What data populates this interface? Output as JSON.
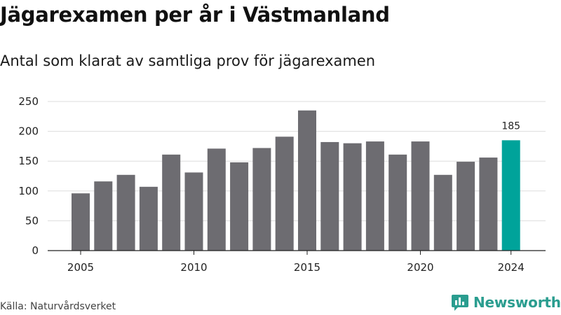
{
  "title": "Jägarexamen per år i Västmanland",
  "subtitle": "Antal som klarat av samtliga prov för jägarexamen",
  "source": "Källa: Naturvårdsverket",
  "brand": {
    "name": "Newsworthy",
    "logo_icon": "bar-chart-icon"
  },
  "colors": {
    "bar": "#6d6c71",
    "highlight": "#00a39a",
    "grid": "#dddddd",
    "brand": "#2a9d8f"
  },
  "chart_data": {
    "type": "bar",
    "categories": [
      "2005",
      "2006",
      "2007",
      "2008",
      "2009",
      "2010",
      "2011",
      "2012",
      "2013",
      "2014",
      "2015",
      "2016",
      "2017",
      "2018",
      "2019",
      "2020",
      "2021",
      "2022",
      "2023",
      "2024"
    ],
    "values": [
      96,
      116,
      127,
      107,
      161,
      131,
      171,
      148,
      172,
      191,
      235,
      182,
      180,
      183,
      161,
      183,
      127,
      149,
      156,
      185
    ],
    "highlight_category": "2024",
    "highlight_label": "185",
    "xtick_labels": [
      "2005",
      "2010",
      "2015",
      "2020",
      "2024"
    ],
    "yticks": [
      0,
      50,
      100,
      150,
      200,
      250
    ],
    "ylim": [
      0,
      250
    ],
    "grid": true,
    "xlabel": "",
    "ylabel": ""
  }
}
